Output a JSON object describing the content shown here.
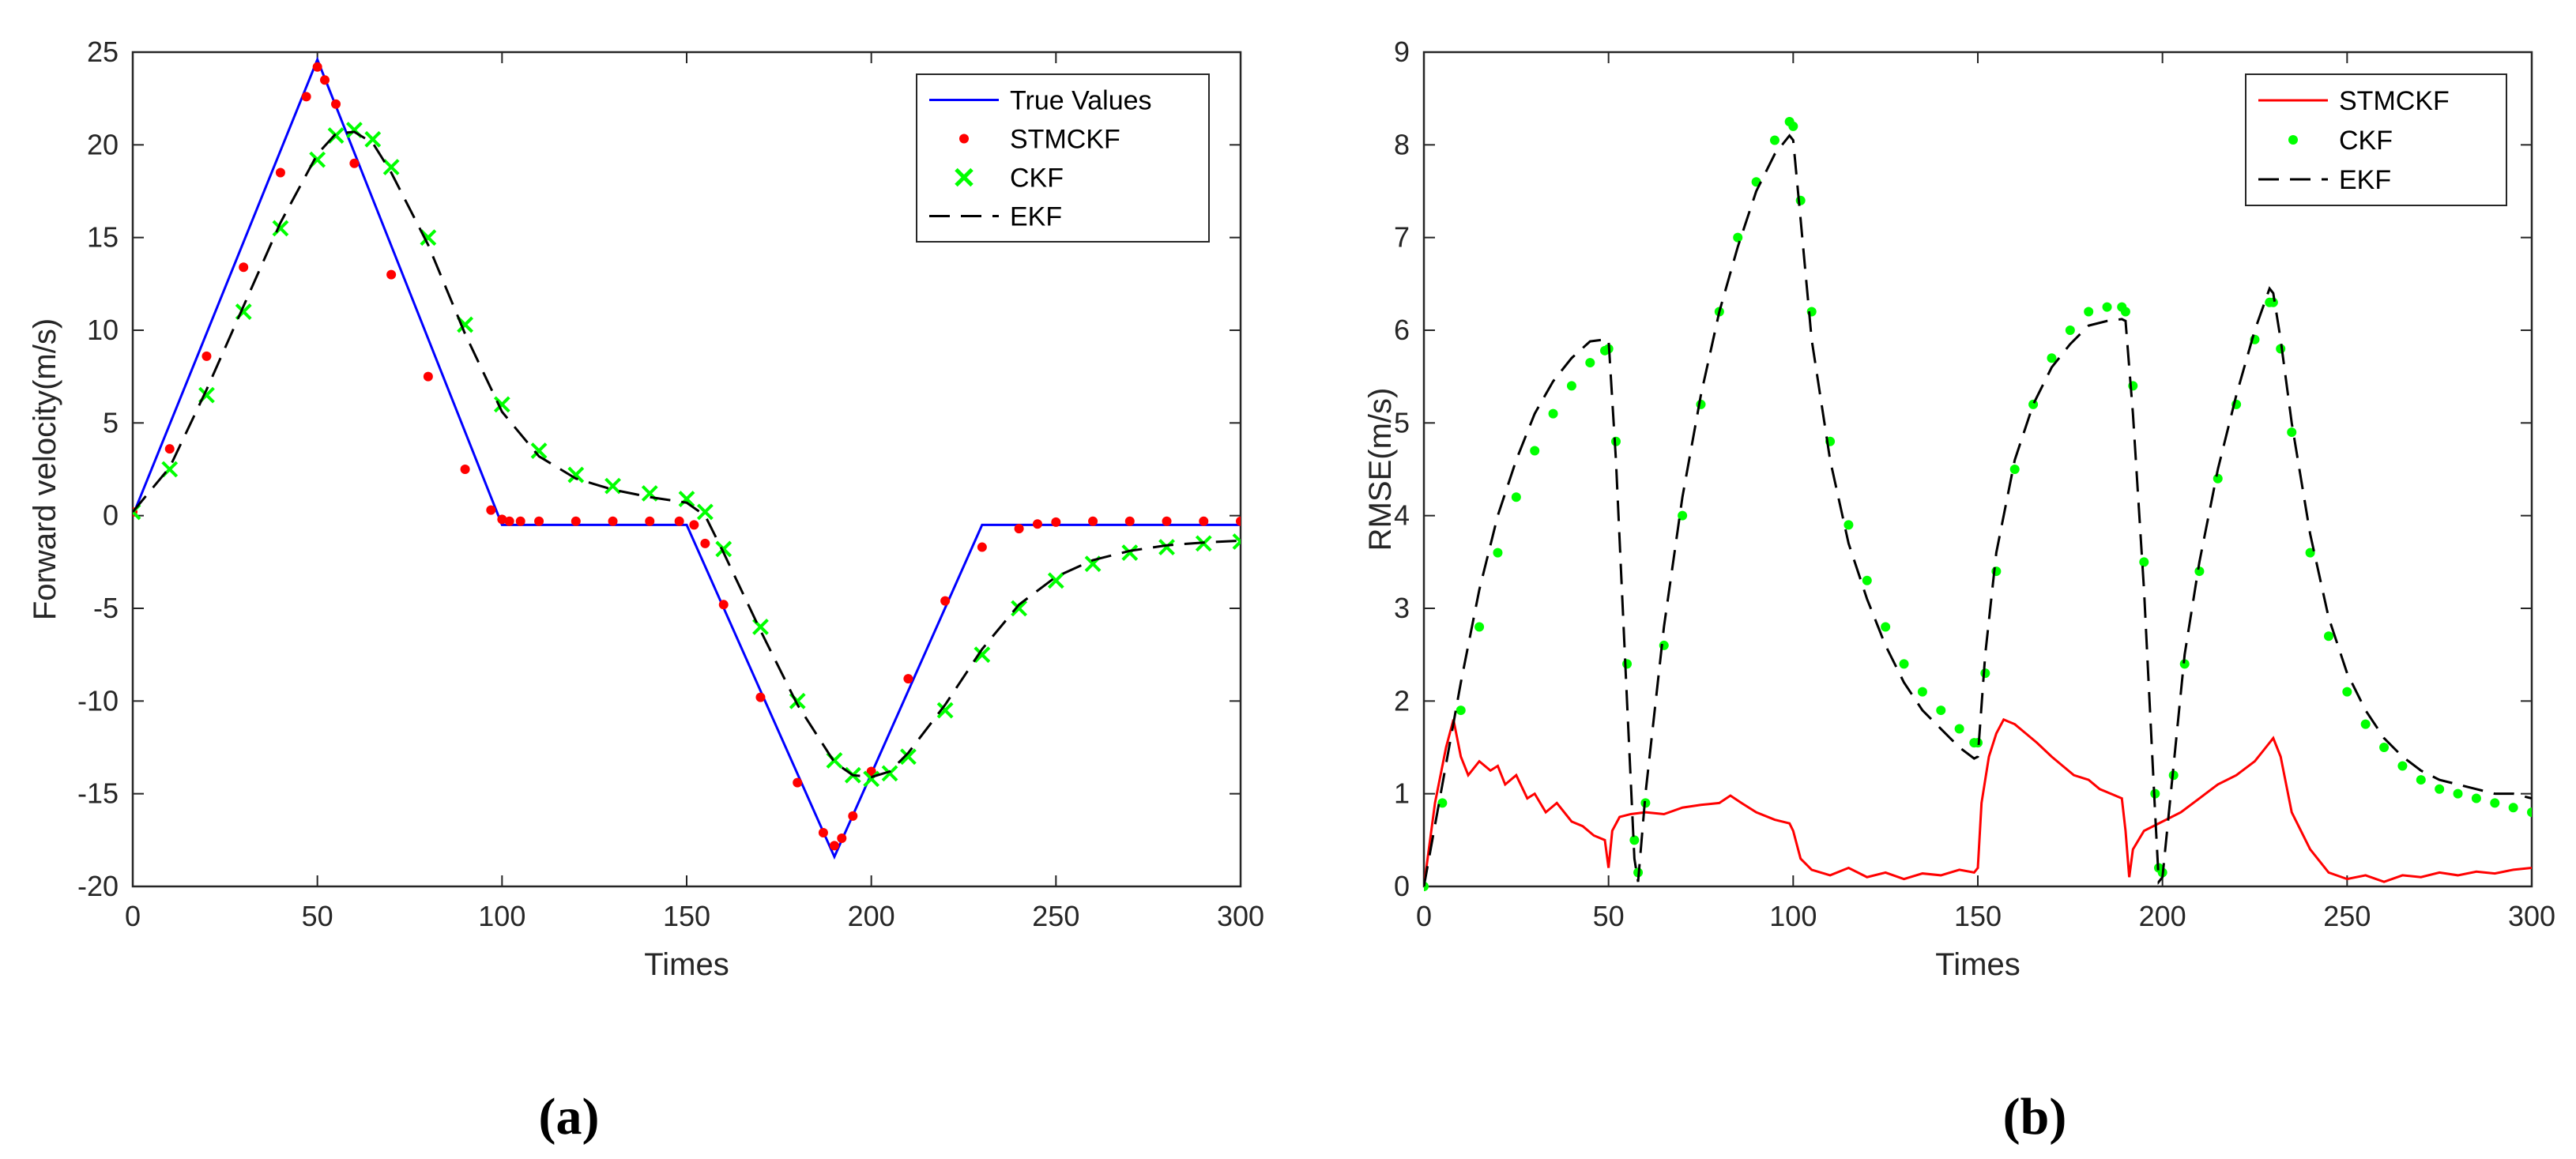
{
  "chart_data": [
    {
      "type": "line",
      "panel_label": "(a)",
      "title": "",
      "xlabel": "Times",
      "ylabel": "Forward velocity(m/s)",
      "xlim": [
        0,
        300
      ],
      "ylim": [
        -20,
        25
      ],
      "xticks": [
        "0",
        "50",
        "100",
        "150",
        "200",
        "250",
        "300"
      ],
      "yticks": [
        "-20",
        "-15",
        "-10",
        "-5",
        "0",
        "5",
        "10",
        "15",
        "20",
        "25"
      ],
      "legend_position": "top-right",
      "series": [
        {
          "name": "True Values",
          "style": "line",
          "color": "#0000ff",
          "x": [
            0,
            50,
            100,
            150,
            190,
            230,
            300
          ],
          "y": [
            0,
            24.6,
            -0.5,
            -0.5,
            -18.4,
            -0.5,
            -0.5
          ]
        },
        {
          "name": "STMCKF",
          "style": "dots",
          "color": "#ff0000",
          "x": [
            0,
            10,
            20,
            30,
            40,
            47,
            50,
            52,
            55,
            60,
            70,
            80,
            90,
            97,
            100,
            102,
            105,
            110,
            120,
            130,
            140,
            148,
            152,
            155,
            160,
            170,
            180,
            187,
            190,
            192,
            195,
            200,
            210,
            220,
            230,
            240,
            245,
            250,
            260,
            270,
            280,
            290,
            300
          ],
          "y": [
            0.2,
            3.6,
            8.6,
            13.4,
            18.5,
            22.6,
            24.2,
            23.5,
            22.2,
            19.0,
            13.0,
            7.5,
            2.5,
            0.3,
            -0.2,
            -0.3,
            -0.3,
            -0.3,
            -0.3,
            -0.3,
            -0.3,
            -0.3,
            -0.5,
            -1.5,
            -4.8,
            -9.8,
            -14.4,
            -17.1,
            -17.8,
            -17.4,
            -16.2,
            -13.8,
            -8.8,
            -4.6,
            -1.7,
            -0.7,
            -0.45,
            -0.35,
            -0.3,
            -0.3,
            -0.3,
            -0.3,
            -0.3
          ]
        },
        {
          "name": "CKF",
          "style": "x",
          "color": "#00ff00",
          "x": [
            0,
            10,
            20,
            30,
            40,
            50,
            55,
            60,
            65,
            70,
            80,
            90,
            100,
            110,
            120,
            130,
            140,
            150,
            155,
            160,
            170,
            180,
            190,
            195,
            200,
            205,
            210,
            220,
            230,
            240,
            250,
            260,
            270,
            280,
            290,
            300
          ],
          "y": [
            0.2,
            2.5,
            6.5,
            11.0,
            15.5,
            19.2,
            20.5,
            20.8,
            20.3,
            18.8,
            15.0,
            10.3,
            6.0,
            3.5,
            2.2,
            1.6,
            1.2,
            0.9,
            0.2,
            -1.8,
            -6.0,
            -10.0,
            -13.2,
            -14.0,
            -14.2,
            -13.9,
            -13.0,
            -10.5,
            -7.5,
            -5.0,
            -3.5,
            -2.6,
            -2.0,
            -1.7,
            -1.5,
            -1.4
          ]
        },
        {
          "name": "EKF",
          "style": "dashed",
          "color": "#000000",
          "x": [
            0,
            10,
            20,
            30,
            40,
            50,
            55,
            60,
            65,
            70,
            80,
            90,
            100,
            110,
            120,
            130,
            140,
            150,
            155,
            160,
            170,
            180,
            190,
            195,
            200,
            205,
            210,
            220,
            230,
            240,
            250,
            260,
            270,
            280,
            290,
            300
          ],
          "y": [
            0.2,
            2.6,
            6.8,
            11.3,
            15.8,
            19.5,
            20.6,
            20.7,
            20.1,
            18.5,
            14.6,
            9.8,
            5.6,
            3.2,
            2.0,
            1.4,
            1.0,
            0.7,
            0.0,
            -2.0,
            -6.2,
            -10.2,
            -13.3,
            -14.0,
            -14.1,
            -13.8,
            -12.8,
            -10.2,
            -7.2,
            -4.8,
            -3.3,
            -2.4,
            -1.9,
            -1.6,
            -1.45,
            -1.35
          ]
        }
      ]
    },
    {
      "type": "line",
      "panel_label": "(b)",
      "title": "",
      "xlabel": "Times",
      "ylabel": "RMSE(m/s)",
      "xlim": [
        0,
        300
      ],
      "ylim": [
        0,
        9
      ],
      "xticks": [
        "0",
        "50",
        "100",
        "150",
        "200",
        "250",
        "300"
      ],
      "yticks": [
        "0",
        "1",
        "2",
        "3",
        "4",
        "5",
        "6",
        "7",
        "8",
        "9"
      ],
      "legend_position": "top-right",
      "series": [
        {
          "name": "STMCKF",
          "style": "line",
          "color": "#ff0000",
          "x": [
            0,
            3,
            6,
            8,
            10,
            12,
            15,
            18,
            20,
            22,
            25,
            28,
            30,
            33,
            36,
            40,
            43,
            46,
            49,
            50,
            51,
            53,
            56,
            60,
            65,
            70,
            75,
            80,
            83,
            86,
            90,
            95,
            99,
            100,
            102,
            105,
            110,
            115,
            120,
            125,
            130,
            135,
            140,
            145,
            149,
            150,
            151,
            153,
            155,
            157,
            160,
            163,
            166,
            170,
            173,
            176,
            180,
            183,
            186,
            189,
            190,
            191,
            192,
            195,
            200,
            205,
            210,
            215,
            220,
            225,
            228,
            230,
            232,
            235,
            240,
            245,
            250,
            255,
            260,
            265,
            270,
            275,
            280,
            285,
            290,
            295,
            300
          ],
          "y": [
            0.0,
            0.9,
            1.5,
            1.8,
            1.4,
            1.2,
            1.35,
            1.25,
            1.3,
            1.1,
            1.2,
            0.95,
            1.0,
            0.8,
            0.9,
            0.7,
            0.65,
            0.55,
            0.5,
            0.2,
            0.6,
            0.75,
            0.78,
            0.8,
            0.78,
            0.85,
            0.88,
            0.9,
            0.98,
            0.9,
            0.8,
            0.72,
            0.68,
            0.6,
            0.3,
            0.18,
            0.12,
            0.2,
            0.1,
            0.15,
            0.08,
            0.14,
            0.12,
            0.18,
            0.15,
            0.2,
            0.9,
            1.4,
            1.65,
            1.8,
            1.75,
            1.65,
            1.55,
            1.4,
            1.3,
            1.2,
            1.15,
            1.05,
            1.0,
            0.95,
            0.6,
            0.1,
            0.4,
            0.6,
            0.7,
            0.8,
            0.95,
            1.1,
            1.2,
            1.35,
            1.5,
            1.6,
            1.4,
            0.8,
            0.4,
            0.15,
            0.08,
            0.12,
            0.05,
            0.12,
            0.1,
            0.15,
            0.12,
            0.16,
            0.14,
            0.18,
            0.2
          ]
        },
        {
          "name": "CKF",
          "style": "dots",
          "color": "#00ff00",
          "x": [
            0,
            5,
            10,
            15,
            20,
            25,
            30,
            35,
            40,
            45,
            49,
            50,
            52,
            55,
            57,
            58,
            60,
            65,
            70,
            75,
            80,
            85,
            90,
            95,
            99,
            100,
            102,
            105,
            110,
            115,
            120,
            125,
            130,
            135,
            140,
            145,
            149,
            150,
            152,
            155,
            160,
            165,
            170,
            175,
            180,
            185,
            189,
            190,
            192,
            195,
            198,
            199,
            200,
            203,
            206,
            210,
            215,
            220,
            225,
            229,
            230,
            232,
            235,
            240,
            245,
            250,
            255,
            260,
            265,
            270,
            275,
            280,
            285,
            290,
            295,
            300
          ],
          "y": [
            0.0,
            0.9,
            1.9,
            2.8,
            3.6,
            4.2,
            4.7,
            5.1,
            5.4,
            5.65,
            5.78,
            5.8,
            4.8,
            2.4,
            0.5,
            0.15,
            0.9,
            2.6,
            4.0,
            5.2,
            6.2,
            7.0,
            7.6,
            8.05,
            8.25,
            8.2,
            7.4,
            6.2,
            4.8,
            3.9,
            3.3,
            2.8,
            2.4,
            2.1,
            1.9,
            1.7,
            1.55,
            1.55,
            2.3,
            3.4,
            4.5,
            5.2,
            5.7,
            6.0,
            6.2,
            6.25,
            6.25,
            6.2,
            5.4,
            3.5,
            1.0,
            0.2,
            0.15,
            1.2,
            2.4,
            3.4,
            4.4,
            5.2,
            5.9,
            6.3,
            6.3,
            5.8,
            4.9,
            3.6,
            2.7,
            2.1,
            1.75,
            1.5,
            1.3,
            1.15,
            1.05,
            1.0,
            0.95,
            0.9,
            0.85,
            0.8
          ]
        },
        {
          "name": "EKF",
          "style": "dashed",
          "color": "#000000",
          "x": [
            0,
            5,
            10,
            15,
            20,
            25,
            30,
            35,
            40,
            45,
            49,
            50,
            52,
            55,
            57,
            58,
            60,
            65,
            70,
            75,
            80,
            85,
            90,
            95,
            99,
            100,
            102,
            105,
            110,
            115,
            120,
            125,
            130,
            135,
            140,
            145,
            149,
            150,
            152,
            155,
            160,
            165,
            170,
            175,
            180,
            185,
            189,
            190,
            192,
            195,
            198,
            199,
            200,
            203,
            206,
            210,
            215,
            220,
            225,
            229,
            230,
            232,
            235,
            240,
            245,
            250,
            255,
            260,
            265,
            270,
            275,
            280,
            285,
            290,
            295,
            300
          ],
          "y": [
            0.0,
            1.1,
            2.2,
            3.2,
            4.0,
            4.6,
            5.1,
            5.45,
            5.7,
            5.88,
            5.9,
            5.9,
            4.6,
            2.0,
            0.3,
            0.05,
            1.0,
            2.8,
            4.2,
            5.3,
            6.2,
            6.9,
            7.5,
            7.9,
            8.1,
            8.05,
            7.2,
            5.9,
            4.6,
            3.7,
            3.1,
            2.6,
            2.2,
            1.9,
            1.7,
            1.5,
            1.38,
            1.4,
            2.5,
            3.6,
            4.6,
            5.2,
            5.6,
            5.85,
            6.05,
            6.1,
            6.12,
            6.1,
            5.1,
            3.2,
            0.8,
            0.05,
            0.1,
            1.3,
            2.5,
            3.5,
            4.5,
            5.3,
            6.0,
            6.45,
            6.4,
            5.9,
            5.0,
            3.8,
            2.9,
            2.3,
            1.9,
            1.6,
            1.4,
            1.25,
            1.15,
            1.1,
            1.05,
            1.0,
            1.0,
            0.95
          ]
        }
      ]
    }
  ]
}
